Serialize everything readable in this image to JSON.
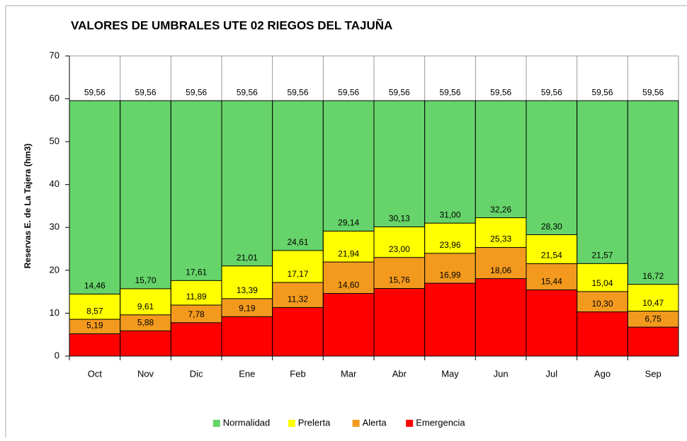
{
  "chart_data": {
    "type": "bar",
    "overlap": true,
    "title": "VALORES DE UMBRALES UTE 02 RIEGOS DEL TAJUÑA",
    "y_label": "Reservas E. de La Tajera (hm3)",
    "categories": [
      "Oct",
      "Nov",
      "Dic",
      "Ene",
      "Feb",
      "Mar",
      "Abr",
      "May",
      "Jun",
      "Jul",
      "Ago",
      "Sep"
    ],
    "series": [
      {
        "name": "Normalidad",
        "color": "#66d46a",
        "values": [
          59.56,
          59.56,
          59.56,
          59.56,
          59.56,
          59.56,
          59.56,
          59.56,
          59.56,
          59.56,
          59.56,
          59.56
        ],
        "value_labels": [
          "59,56",
          "59,56",
          "59,56",
          "59,56",
          "59,56",
          "59,56",
          "59,56",
          "59,56",
          "59,56",
          "59,56",
          "59,56",
          "59,56"
        ]
      },
      {
        "name": "Prelerta",
        "color": "#ffff00",
        "values": [
          14.46,
          15.7,
          17.61,
          21.01,
          24.61,
          29.14,
          30.13,
          31.0,
          32.26,
          28.3,
          21.57,
          16.72
        ],
        "value_labels": [
          "14,46",
          "15,70",
          "17,61",
          "21,01",
          "24,61",
          "29,14",
          "30,13",
          "31,00",
          "32,26",
          "28,30",
          "21,57",
          "16,72"
        ]
      },
      {
        "name": "Alerta",
        "color": "#f39a1e",
        "values": [
          8.57,
          9.61,
          11.89,
          13.39,
          17.17,
          21.94,
          23.0,
          23.96,
          25.33,
          21.54,
          15.04,
          10.47
        ],
        "value_labels": [
          "8,57",
          "9,61",
          "11,89",
          "13,39",
          "17,17",
          "21,94",
          "23,00",
          "23,96",
          "25,33",
          "21,54",
          "15,04",
          "10,47"
        ]
      },
      {
        "name": "Emergencia",
        "color": "#ff0000",
        "values": [
          5.19,
          5.88,
          7.78,
          9.19,
          11.32,
          14.6,
          15.76,
          16.99,
          18.06,
          15.44,
          10.3,
          6.75
        ],
        "value_labels": [
          "5,19",
          "5,88",
          "7,78",
          "9,19",
          "11,32",
          "14,60",
          "15,76",
          "16,99",
          "18,06",
          "15,44",
          "10,30",
          "6,75"
        ]
      }
    ],
    "ylim": [
      0,
      70
    ],
    "yticks": [
      0,
      10,
      20,
      30,
      40,
      50,
      60,
      70
    ],
    "grid": false,
    "legend": "bottom"
  }
}
